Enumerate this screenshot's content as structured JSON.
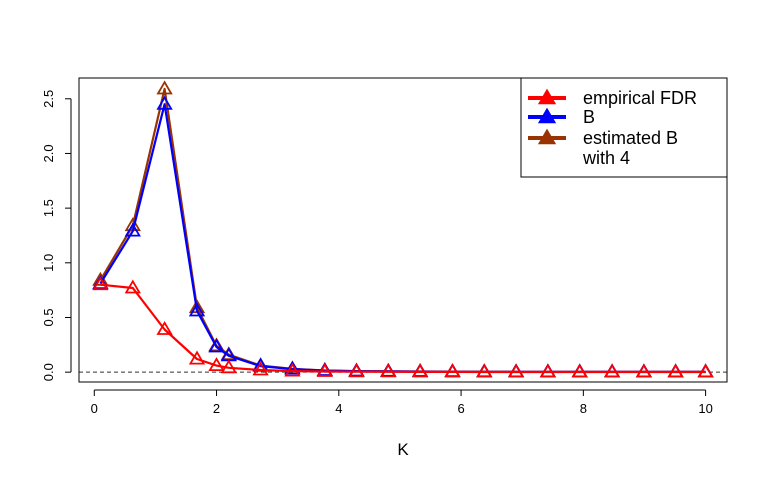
{
  "chart_data": {
    "type": "line",
    "xlabel": "K",
    "ylabel": "",
    "xlim": [
      -0.25,
      10.35
    ],
    "ylim": [
      -0.09,
      2.69
    ],
    "xticks": [
      0,
      2,
      4,
      6,
      8,
      10
    ],
    "xtick_labels": [
      "0",
      "2",
      "4",
      "6",
      "8",
      "10"
    ],
    "yticks": [
      0.0,
      0.5,
      1.0,
      1.5,
      2.0,
      2.5
    ],
    "ytick_labels": [
      "0.0",
      "0.5",
      "1.0",
      "1.5",
      "2.0",
      "2.5"
    ],
    "reference_line": {
      "y": 0,
      "style": "dashed"
    },
    "grid": false,
    "legend": {
      "position": "top-right",
      "lines": [
        {
          "text": "empirical FDR",
          "marker": true,
          "color": "#ff0000"
        },
        {
          "text": "B",
          "marker": true,
          "color": "#0000ff"
        },
        {
          "text": "estimated B",
          "marker": true,
          "color": "#993300"
        },
        {
          "text": "with 4",
          "marker": false,
          "color": ""
        }
      ]
    },
    "x": [
      0.1,
      0.63,
      1.15,
      1.68,
      2.0,
      2.2,
      2.72,
      3.24,
      3.77,
      4.29,
      4.81,
      5.33,
      5.86,
      6.38,
      6.9,
      7.42,
      7.94,
      8.47,
      8.99,
      9.51,
      10.0
    ],
    "series": [
      {
        "color": "#993300",
        "values": [
          0.84,
          1.34,
          2.59,
          0.59,
          0.24,
          0.16,
          0.06,
          0.03,
          0.015,
          0.01,
          0.008,
          0.006,
          0.005,
          0.004,
          0.003,
          0.003,
          0.002,
          0.002,
          0.002,
          0.002,
          0.002
        ]
      },
      {
        "color": "#0000ff",
        "values": [
          0.81,
          1.29,
          2.45,
          0.56,
          0.23,
          0.15,
          0.055,
          0.028,
          0.014,
          0.009,
          0.007,
          0.005,
          0.004,
          0.003,
          0.003,
          0.002,
          0.002,
          0.002,
          0.002,
          0.002,
          0.002
        ]
      },
      {
        "color": "#ff0000",
        "values": [
          0.8,
          0.77,
          0.39,
          0.12,
          0.06,
          0.04,
          0.02,
          0.01,
          0.006,
          0.004,
          0.003,
          0.002,
          0.002,
          0.001,
          0.001,
          0.001,
          0.001,
          0.001,
          0.001,
          0.001,
          0.001
        ]
      }
    ]
  }
}
